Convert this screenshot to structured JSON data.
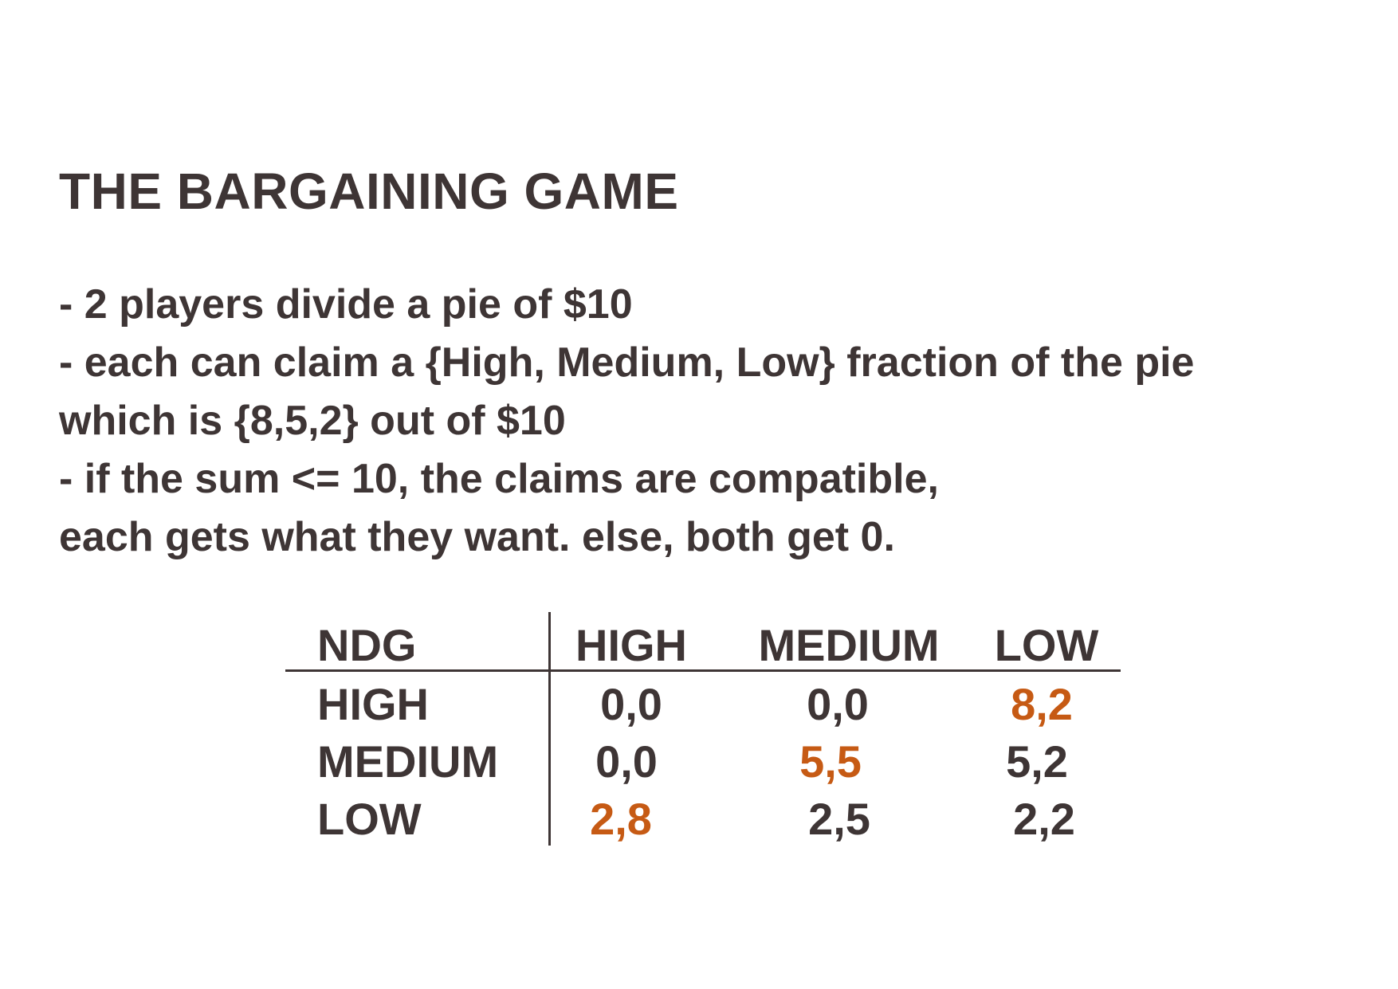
{
  "title": "THE BARGAINING GAME",
  "bullets": [
    "- 2 players divide a pie of $10",
    "- each can claim a {High, Medium, Low} fraction of the pie",
    "which is {8,5,2} out of $10",
    "- if the sum <= 10, the claims are compatible,",
    "each gets what they want. else, both get 0."
  ],
  "payoff_table": {
    "corner": "NDG",
    "columns": [
      "HIGH",
      "MEDIUM",
      "LOW"
    ],
    "rows": [
      {
        "label": "HIGH",
        "cells": [
          "0,0",
          "0,0",
          "8,2"
        ]
      },
      {
        "label": "MEDIUM",
        "cells": [
          "0,0",
          "5,5",
          "5,2"
        ]
      },
      {
        "label": "LOW",
        "cells": [
          "2,8",
          "2,5",
          "2,2"
        ]
      }
    ],
    "highlighted_cells": [
      "HIGH/LOW",
      "MEDIUM/MEDIUM",
      "LOW/HIGH"
    ]
  },
  "colors": {
    "text": "#3e3535",
    "highlight": "#c65a14",
    "background": "#ffffff"
  }
}
